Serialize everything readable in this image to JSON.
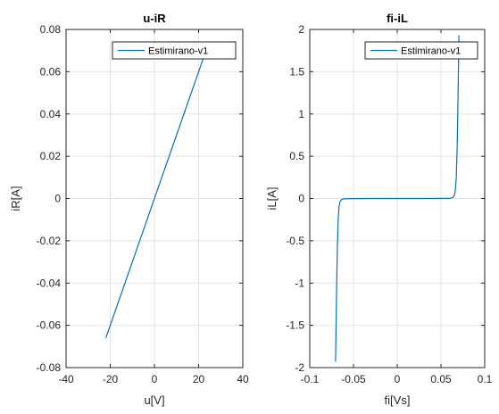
{
  "chart_data": [
    {
      "type": "line",
      "title": "u-iR",
      "xlabel": "u[V]",
      "ylabel": "iR[A]",
      "xlim": [
        -40,
        40
      ],
      "ylim": [
        -0.08,
        0.08
      ],
      "xticks": [
        -40,
        -20,
        0,
        20,
        40
      ],
      "yticks": [
        -0.08,
        -0.06,
        -0.04,
        -0.02,
        0,
        0.02,
        0.04,
        0.06,
        0.08
      ],
      "xtick_labels": [
        "-40",
        "-20",
        "0",
        "20",
        "40"
      ],
      "ytick_labels": [
        "-0.08",
        "-0.06",
        "-0.04",
        "-0.02",
        "0",
        "0.02",
        "0.04",
        "0.06",
        "0.08"
      ],
      "grid": true,
      "legend_position": "top-right",
      "series": [
        {
          "name": "Estimirano-v1",
          "color": "#0072BD",
          "x": [
            -22,
            22
          ],
          "y": [
            -0.066,
            0.066
          ]
        }
      ]
    },
    {
      "type": "line",
      "title": "fi-iL",
      "xlabel": "fi[Vs]",
      "ylabel": "iL[A]",
      "xlim": [
        -0.1,
        0.1
      ],
      "ylim": [
        -2,
        2
      ],
      "xticks": [
        -0.1,
        -0.05,
        0,
        0.05,
        0.1
      ],
      "yticks": [
        -2,
        -1.5,
        -1,
        -0.5,
        0,
        0.5,
        1,
        1.5,
        2
      ],
      "xtick_labels": [
        "-0.1",
        "-0.05",
        "0",
        "0.05",
        "0.1"
      ],
      "ytick_labels": [
        "-2",
        "-1.5",
        "-1",
        "-0.5",
        "0",
        "0.5",
        "1",
        "1.5",
        "2"
      ],
      "grid": true,
      "legend_position": "top-right",
      "series": [
        {
          "name": "Estimirano-v1",
          "color": "#0072BD",
          "x": [
            -0.0705,
            -0.0695,
            -0.0685,
            -0.0675,
            -0.0665,
            -0.0655,
            -0.064,
            -0.062,
            -0.06,
            -0.05,
            -0.03,
            0,
            0.03,
            0.05,
            0.06,
            0.062,
            0.064,
            0.0655,
            0.0665,
            0.0675,
            0.0685,
            0.0695,
            0.0705
          ],
          "y": [
            -1.93,
            -1.2,
            -0.6,
            -0.25,
            -0.1,
            -0.04,
            -0.015,
            -0.006,
            -0.003,
            -0.001,
            0,
            0,
            0,
            0.001,
            0.003,
            0.006,
            0.015,
            0.04,
            0.1,
            0.25,
            0.6,
            1.2,
            1.93
          ]
        }
      ]
    }
  ]
}
